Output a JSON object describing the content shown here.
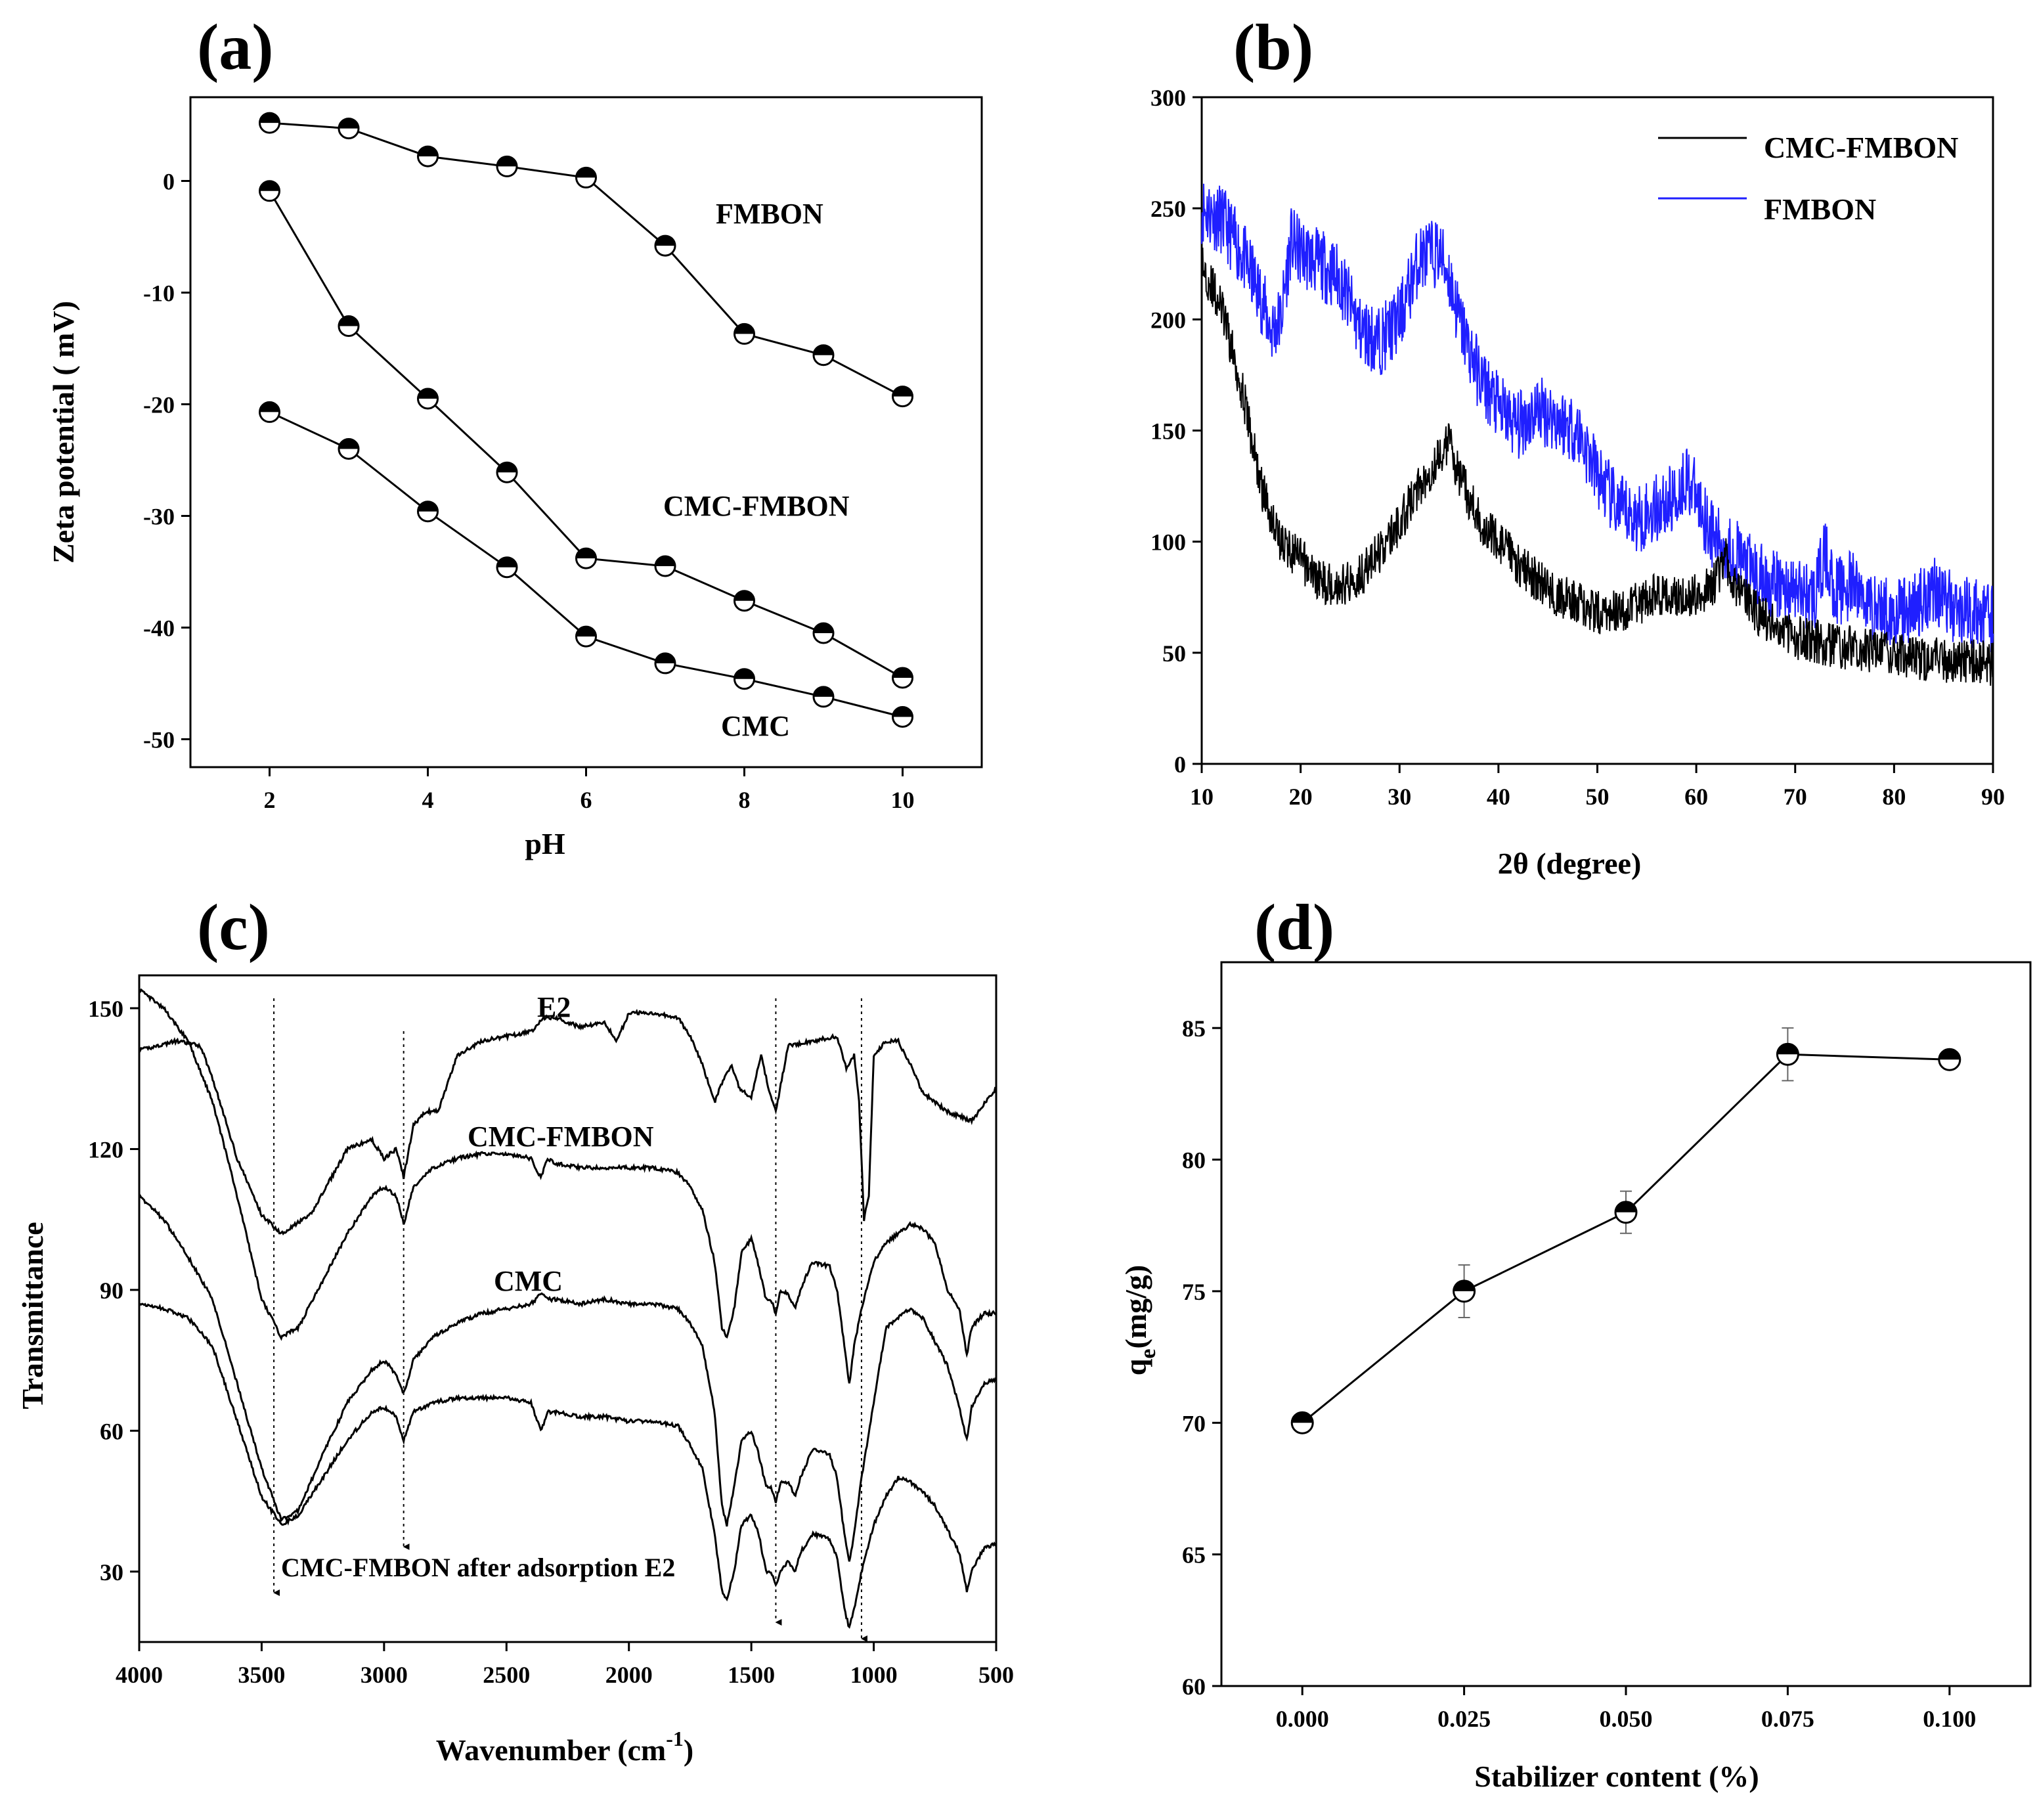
{
  "chart_data": [
    {
      "id": "a",
      "type": "line",
      "panel_label": "(a)",
      "xlabel": "pH",
      "ylabel": "Zeta potential ( mV)",
      "xlim": [
        1,
        11
      ],
      "ylim": [
        -52.5,
        7.5
      ],
      "xticks": [
        2,
        4,
        6,
        8,
        10
      ],
      "yticks": [
        0,
        -10,
        -20,
        -30,
        -40,
        -50
      ],
      "x": [
        2,
        3,
        4,
        5,
        6,
        7,
        8,
        9,
        10
      ],
      "series": [
        {
          "name": "FMBON",
          "values": [
            5.2,
            4.7,
            2.2,
            1.3,
            0.3,
            -5.8,
            -13.7,
            -15.6,
            -19.3
          ]
        },
        {
          "name": "CMC-FMBON",
          "values": [
            -0.9,
            -13.0,
            -19.5,
            -26.1,
            -33.8,
            -34.5,
            -37.6,
            -40.5,
            -44.5
          ]
        },
        {
          "name": "CMC",
          "values": [
            -20.7,
            -24.0,
            -29.6,
            -34.6,
            -40.8,
            -43.2,
            -44.6,
            -46.2,
            -48.0
          ]
        }
      ]
    },
    {
      "id": "b",
      "type": "line",
      "panel_label": "(b)",
      "xlabel": "2θ  (degree)",
      "ylabel": "",
      "xlim": [
        10,
        90
      ],
      "ylim": [
        0,
        300
      ],
      "xticks": [
        10,
        20,
        30,
        40,
        50,
        60,
        70,
        80,
        90
      ],
      "yticks": [
        0,
        50,
        100,
        150,
        200,
        250,
        300
      ],
      "legend": "top-right",
      "series": [
        {
          "name": "CMC-FMBON",
          "color": "#000000",
          "x": [
            10,
            12,
            14,
            16,
            18,
            20,
            22,
            24,
            26,
            28,
            30,
            32,
            34,
            35,
            36,
            38,
            40,
            42,
            44,
            46,
            48,
            50,
            52,
            54,
            56,
            58,
            60,
            62,
            63,
            64,
            66,
            68,
            70,
            72,
            74,
            76,
            78,
            80,
            82,
            84,
            86,
            88,
            90
          ],
          "values": [
            225,
            205,
            170,
            125,
            100,
            92,
            82,
            80,
            85,
            95,
            108,
            125,
            138,
            145,
            130,
            110,
            100,
            90,
            82,
            76,
            72,
            68,
            68,
            72,
            76,
            76,
            76,
            82,
            92,
            80,
            68,
            62,
            57,
            55,
            53,
            52,
            51,
            50,
            48,
            47,
            46,
            46,
            45
          ]
        },
        {
          "name": "FMBON",
          "color": "#1f1fff",
          "x": [
            10,
            12,
            14,
            16,
            17,
            18,
            19,
            20,
            22,
            24,
            26,
            28,
            30,
            32,
            34,
            35,
            36,
            38,
            40,
            42,
            44,
            46,
            48,
            50,
            52,
            54,
            56,
            58,
            59,
            60,
            62,
            64,
            66,
            68,
            70,
            72,
            73,
            74,
            76,
            78,
            80,
            82,
            84,
            86,
            88,
            90
          ],
          "values": [
            250,
            245,
            230,
            210,
            195,
            200,
            235,
            230,
            225,
            218,
            195,
            190,
            200,
            228,
            230,
            220,
            200,
            175,
            160,
            152,
            160,
            155,
            150,
            130,
            115,
            110,
            115,
            120,
            130,
            120,
            100,
            95,
            85,
            80,
            78,
            75,
            95,
            78,
            80,
            70,
            68,
            70,
            80,
            70,
            68,
            65
          ]
        }
      ]
    },
    {
      "id": "c",
      "type": "line",
      "panel_label": "(c)",
      "xlabel": "Wavenumber (cm",
      "xlabel_sup": "-1",
      "xlabel_tail": ")",
      "ylabel": "Transmittance",
      "xlim": [
        4000,
        500
      ],
      "ylim": [
        15,
        157
      ],
      "xticks": [
        4000,
        3500,
        3000,
        2500,
        2000,
        1500,
        1000,
        500
      ],
      "xtick_labels": [
        "4000",
        "3500",
        "3000",
        "2500",
        "2000",
        "1500",
        "1000",
        "500"
      ],
      "yticks": [
        30,
        60,
        90,
        120,
        150
      ],
      "marker_lines": [
        3450,
        2920,
        1400,
        1050
      ],
      "series": [
        {
          "name": "E2",
          "x": [
            4000,
            3850,
            3750,
            3700,
            3600,
            3500,
            3420,
            3300,
            3150,
            3050,
            3000,
            2950,
            2920,
            2880,
            2850,
            2820,
            2780,
            2700,
            2600,
            2500,
            2400,
            2350,
            2300,
            2200,
            2100,
            2050,
            2000,
            1900,
            1800,
            1750,
            1700,
            1650,
            1620,
            1580,
            1550,
            1500,
            1460,
            1430,
            1400,
            1350,
            1250,
            1150,
            1110,
            1080,
            1060,
            1040,
            1020,
            1000,
            950,
            900,
            850,
            800,
            700,
            600,
            500
          ],
          "values": [
            141,
            143,
            142,
            135,
            118,
            106,
            102,
            106,
            120,
            122,
            118,
            120,
            114,
            125,
            127,
            128,
            128,
            140,
            143,
            144,
            145,
            148,
            148,
            146,
            147,
            143,
            149,
            149,
            148,
            144,
            138,
            130,
            134,
            138,
            133,
            131,
            140,
            133,
            128,
            142,
            143,
            144,
            137,
            140,
            130,
            105,
            110,
            140,
            143,
            143,
            138,
            132,
            128,
            126,
            133
          ]
        },
        {
          "name": "CMC-FMBON",
          "x": [
            4000,
            3900,
            3800,
            3700,
            3600,
            3500,
            3420,
            3350,
            3250,
            3150,
            3050,
            3000,
            2950,
            2920,
            2880,
            2800,
            2700,
            2600,
            2500,
            2400,
            2360,
            2330,
            2300,
            2200,
            2100,
            2000,
            1900,
            1800,
            1750,
            1700,
            1650,
            1620,
            1600,
            1570,
            1540,
            1500,
            1470,
            1440,
            1420,
            1400,
            1380,
            1350,
            1320,
            1300,
            1250,
            1180,
            1150,
            1120,
            1100,
            1080,
            1050,
            1000,
            950,
            900,
            850,
            800,
            750,
            700,
            650,
            620,
            600,
            550,
            500
          ],
          "values": [
            154,
            150,
            143,
            130,
            110,
            88,
            80,
            82,
            92,
            102,
            110,
            112,
            110,
            104,
            112,
            116,
            118,
            119,
            119,
            118,
            114,
            118,
            117,
            116,
            116,
            116,
            116,
            115,
            112,
            107,
            96,
            82,
            80,
            86,
            98,
            101,
            95,
            88,
            88,
            85,
            90,
            89,
            86,
            90,
            96,
            95,
            90,
            78,
            70,
            78,
            86,
            96,
            100,
            102,
            104,
            103,
            100,
            90,
            86,
            76,
            82,
            85,
            85
          ]
        },
        {
          "name": "CMC",
          "x": [
            4000,
            3900,
            3800,
            3700,
            3600,
            3500,
            3420,
            3350,
            3250,
            3150,
            3050,
            3000,
            2950,
            2920,
            2880,
            2800,
            2700,
            2600,
            2500,
            2400,
            2360,
            2330,
            2300,
            2200,
            2100,
            2000,
            1900,
            1800,
            1750,
            1700,
            1650,
            1620,
            1600,
            1570,
            1540,
            1500,
            1470,
            1440,
            1420,
            1400,
            1380,
            1350,
            1320,
            1300,
            1250,
            1180,
            1150,
            1120,
            1100,
            1080,
            1050,
            1000,
            950,
            900,
            850,
            800,
            750,
            700,
            650,
            620,
            600,
            550,
            500
          ],
          "values": [
            110,
            105,
            97,
            88,
            70,
            52,
            41,
            43,
            55,
            66,
            73,
            75,
            72,
            68,
            75,
            80,
            83,
            85,
            86,
            87,
            89,
            88,
            88,
            87,
            88,
            87,
            87,
            86,
            83,
            78,
            64,
            44,
            40,
            48,
            58,
            60,
            55,
            48,
            48,
            45,
            49,
            49,
            46,
            50,
            56,
            55,
            50,
            38,
            32,
            38,
            50,
            66,
            82,
            84,
            86,
            84,
            79,
            74,
            65,
            58,
            65,
            70,
            71
          ]
        },
        {
          "name": "CMC-FMBON after adsorption E2",
          "x": [
            4000,
            3900,
            3800,
            3700,
            3600,
            3500,
            3420,
            3350,
            3250,
            3150,
            3050,
            3000,
            2950,
            2920,
            2880,
            2800,
            2700,
            2600,
            2500,
            2400,
            2360,
            2330,
            2300,
            2200,
            2100,
            2000,
            1900,
            1800,
            1750,
            1700,
            1650,
            1620,
            1600,
            1570,
            1540,
            1500,
            1470,
            1440,
            1420,
            1400,
            1380,
            1350,
            1320,
            1300,
            1250,
            1180,
            1150,
            1120,
            1100,
            1080,
            1050,
            1000,
            950,
            900,
            850,
            800,
            750,
            700,
            650,
            620,
            600,
            550,
            500
          ],
          "values": [
            87,
            86,
            84,
            78,
            62,
            46,
            40,
            42,
            50,
            58,
            64,
            65,
            63,
            58,
            64,
            66,
            67,
            67,
            67,
            66,
            60,
            64,
            64,
            63,
            63,
            62,
            62,
            61,
            57,
            52,
            38,
            26,
            24,
            30,
            40,
            42,
            38,
            30,
            30,
            27,
            30,
            32,
            30,
            34,
            38,
            37,
            33,
            22,
            18,
            22,
            30,
            40,
            46,
            50,
            49,
            47,
            44,
            39,
            34,
            26,
            30,
            35,
            36
          ]
        }
      ]
    },
    {
      "id": "d",
      "type": "line",
      "panel_label": "(d)",
      "xlabel": "Stabilizer content (%)",
      "ylabel": "q",
      "ylabel_sub": "e",
      "ylabel_tail": "(mg/g)",
      "xlim": [
        -0.0125,
        0.1125
      ],
      "ylim": [
        60,
        87.5
      ],
      "xticks": [
        0.0,
        0.025,
        0.05,
        0.075,
        0.1
      ],
      "xtick_labels": [
        "0.000",
        "0.025",
        "0.050",
        "0.075",
        "0.100"
      ],
      "yticks": [
        60,
        65,
        70,
        75,
        80,
        85
      ],
      "x": [
        0.0,
        0.025,
        0.05,
        0.075,
        0.1
      ],
      "series": [
        {
          "name": "qe",
          "values": [
            70.0,
            75.0,
            78.0,
            84.0,
            83.8
          ],
          "errors": [
            0.3,
            1.0,
            0.8,
            1.0,
            0.2
          ]
        }
      ]
    }
  ]
}
